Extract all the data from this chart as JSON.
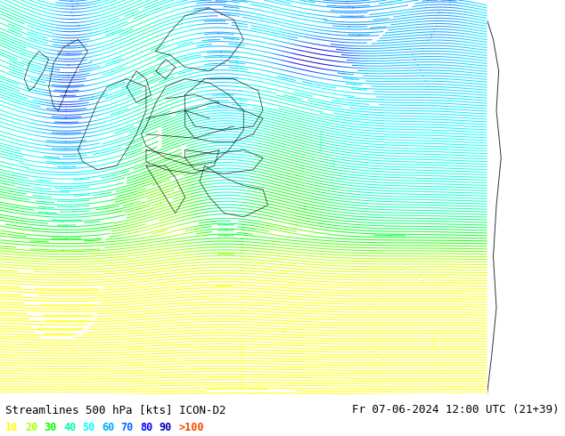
{
  "title_left": "Streamlines 500 hPa [kts] ICON-D2",
  "title_right": "Fr 07-06-2024 12:00 UTC (21+39)",
  "legend_labels": [
    "10",
    "20",
    "30",
    "40",
    "50",
    "60",
    "70",
    "80",
    "90",
    ">100"
  ],
  "legend_colors": [
    "#ffff00",
    "#aaff00",
    "#00ff00",
    "#00ffaa",
    "#00ffff",
    "#00aaff",
    "#0055ff",
    "#0000ff",
    "#0000cc",
    "#000088"
  ],
  "bg_color": "#ffffff",
  "right_panel_color": "#c8c4a0",
  "title_color": "#000000",
  "title_fontsize": 9,
  "legend_fontsize": 8.5,
  "figsize": [
    6.34,
    4.9
  ],
  "dpi": 100,
  "colormap": [
    [
      0.0,
      "#ffff00"
    ],
    [
      0.08,
      "#ccff00"
    ],
    [
      0.15,
      "#00ff00"
    ],
    [
      0.25,
      "#00ffcc"
    ],
    [
      0.35,
      "#00ffff"
    ],
    [
      0.45,
      "#00ccff"
    ],
    [
      0.55,
      "#0088ff"
    ],
    [
      0.65,
      "#0044ff"
    ],
    [
      0.75,
      "#0000ff"
    ],
    [
      0.85,
      "#0000cc"
    ],
    [
      1.0,
      "#000088"
    ]
  ]
}
